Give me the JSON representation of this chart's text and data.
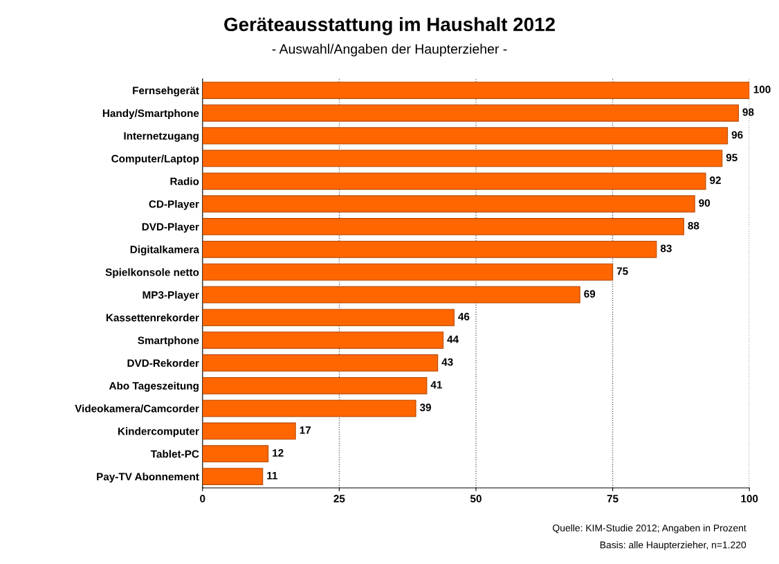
{
  "chart_data": {
    "type": "bar",
    "orientation": "horizontal",
    "title": "Geräteausstattung im Haushalt 2012",
    "subtitle": "- Auswahl/Angaben der Haupterzieher -",
    "categories": [
      "Fernsehgerät",
      "Handy/Smartphone",
      "Internetzugang",
      "Computer/Laptop",
      "Radio",
      "CD-Player",
      "DVD-Player",
      "Digitalkamera",
      "Spielkonsole netto",
      "MP3-Player",
      "Kassettenrekorder",
      "Smartphone",
      "DVD-Rekorder",
      "Abo Tageszeitung",
      "Videokamera/Camcorder",
      "Kindercomputer",
      "Tablet-PC",
      "Pay-TV Abonnement"
    ],
    "values": [
      100,
      98,
      96,
      95,
      92,
      90,
      88,
      83,
      75,
      69,
      46,
      44,
      43,
      41,
      39,
      17,
      12,
      11
    ],
    "color": "#ff6600",
    "data_labels": true,
    "xlim": [
      0,
      100
    ],
    "xticks": [
      0,
      25,
      50,
      75,
      100
    ],
    "grid": "x",
    "annotations": [
      "Quelle: KIM-Studie 2012; Angaben in Prozent",
      "Basis: alle Haupterzieher, n=1.220"
    ]
  }
}
